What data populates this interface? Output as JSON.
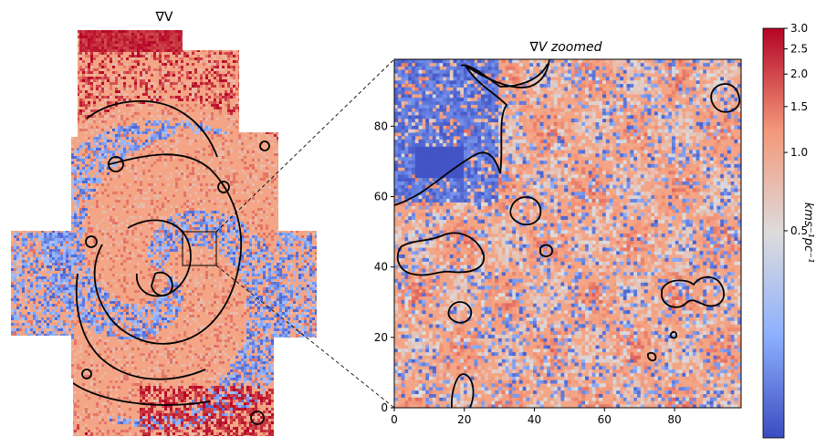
{
  "chart_data": [
    {
      "type": "heatmap",
      "title": "∇V",
      "contours": "black",
      "axes_visible": false,
      "inset_box": {
        "x": [
          48,
          58
        ],
        "y": [
          44,
          54
        ],
        "units": "fraction-of-map-percent"
      }
    },
    {
      "type": "heatmap",
      "title": "∇V zoomed",
      "xlim": [
        0,
        99
      ],
      "ylim": [
        0,
        99
      ],
      "xticks": [
        "0",
        "20",
        "40",
        "60",
        "80"
      ],
      "yticks": [
        "0",
        "20",
        "40",
        "60",
        "80"
      ],
      "grid_size": 100,
      "contours": "black"
    }
  ],
  "colorbar": {
    "label": "kms⁻¹pc⁻¹",
    "scale": "log",
    "ticks": [
      "0.5",
      "1.0",
      "1.5",
      "2.0",
      "2.5",
      "3.0"
    ],
    "colormap": [
      "#3b4cc0",
      "#8db0fe",
      "#dddcdc",
      "#f4987a",
      "#b40426"
    ]
  }
}
